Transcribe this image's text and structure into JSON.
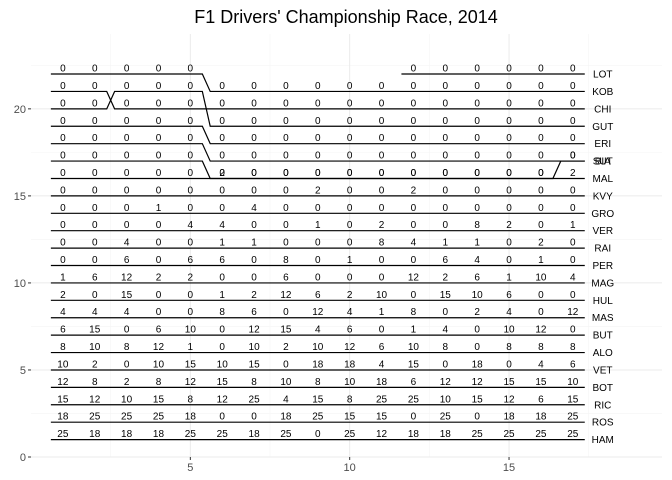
{
  "chart_data": {
    "type": "line",
    "title": "F1 Drivers' Championship Race, 2014",
    "xlabel": "",
    "ylabel": "",
    "xlim": [
      0,
      19.8
    ],
    "ylim": [
      0,
      24.3
    ],
    "x_ticks": [
      5,
      10,
      15
    ],
    "y_ticks": [
      0,
      5,
      10,
      15,
      20
    ],
    "grid": true,
    "x": [
      1,
      2,
      3,
      4,
      5,
      6,
      7,
      8,
      9,
      10,
      11,
      12,
      13,
      14,
      15,
      16,
      17
    ],
    "series": [
      {
        "name": "LOT",
        "ranks": [
          null,
          null,
          null,
          null,
          null,
          null,
          null,
          null,
          null,
          null,
          null,
          22,
          22,
          22,
          22,
          22,
          22
        ],
        "points": [
          "",
          "",
          "",
          "",
          "",
          "",
          "",
          "",
          "",
          "",
          "",
          "0",
          "0",
          "0",
          "0",
          "0",
          "0"
        ]
      },
      {
        "name": "KOB",
        "ranks": [
          22,
          22,
          22,
          22,
          22,
          21,
          21,
          21,
          21,
          21,
          21,
          21,
          21,
          21,
          21,
          21,
          21
        ],
        "points": [
          "0",
          "0",
          "0",
          "0",
          "0",
          "0",
          "0",
          "0",
          "0",
          "0",
          "0",
          "0",
          "0",
          "0",
          "0",
          "0",
          "0"
        ]
      },
      {
        "name": "CHI",
        "ranks": [
          21,
          21,
          20,
          20,
          20,
          20,
          20,
          20,
          20,
          20,
          20,
          20,
          20,
          20,
          20,
          20,
          20
        ],
        "points": [
          "0",
          "0",
          "0",
          "0",
          "0",
          "0",
          "0",
          "0",
          "0",
          "0",
          "0",
          "0",
          "0",
          "0",
          "0",
          "0",
          "0"
        ]
      },
      {
        "name": "GUT",
        "ranks": [
          20,
          20,
          21,
          21,
          21,
          19,
          19,
          19,
          19,
          19,
          19,
          19,
          19,
          19,
          19,
          19,
          19
        ],
        "points": [
          "0",
          "0",
          "0",
          "0",
          "0",
          "0",
          "0",
          "0",
          "0",
          "0",
          "0",
          "0",
          "0",
          "0",
          "0",
          "0",
          "0"
        ]
      },
      {
        "name": "ERI",
        "ranks": [
          19,
          19,
          19,
          19,
          19,
          18,
          18,
          18,
          18,
          18,
          18,
          18,
          18,
          18,
          18,
          18,
          18
        ],
        "points": [
          "0",
          "0",
          "0",
          "0",
          "0",
          "0",
          "0",
          "0",
          "0",
          "0",
          "0",
          "0",
          "0",
          "0",
          "0",
          "0",
          "0"
        ]
      },
      {
        "name": "SUT",
        "ranks": [
          18,
          18,
          18,
          18,
          18,
          17,
          17,
          17,
          17,
          17,
          17,
          17,
          17,
          17,
          17,
          17,
          17
        ],
        "points": [
          "0",
          "0",
          "0",
          "0",
          "0",
          "0",
          "0",
          "0",
          "0",
          "0",
          "0",
          "0",
          "0",
          "0",
          "0",
          "0",
          "0"
        ]
      },
      {
        "name": "BIA",
        "ranks": [
          17,
          17,
          17,
          17,
          17,
          16,
          16,
          16,
          16,
          16,
          16,
          16,
          16,
          16,
          16,
          16,
          17
        ],
        "points": [
          "0",
          "0",
          "0",
          "0",
          "0",
          "2",
          "0",
          "0",
          "0",
          "0",
          "0",
          "0",
          "0",
          "0",
          "0",
          "0",
          "0"
        ]
      },
      {
        "name": "MAL",
        "ranks": [
          16,
          16,
          16,
          16,
          16,
          16,
          16,
          16,
          16,
          16,
          16,
          16,
          16,
          16,
          16,
          16,
          16
        ],
        "points": [
          "0",
          "0",
          "0",
          "0",
          "0",
          "0",
          "0",
          "0",
          "0",
          "0",
          "0",
          "0",
          "0",
          "0",
          "0",
          "0",
          "2"
        ]
      },
      {
        "name": "KVY",
        "ranks": [
          15,
          15,
          15,
          15,
          15,
          15,
          15,
          15,
          15,
          15,
          15,
          15,
          15,
          15,
          15,
          15,
          15
        ],
        "points": [
          "0",
          "0",
          "0",
          "0",
          "0",
          "0",
          "0",
          "0",
          "2",
          "0",
          "0",
          "2",
          "0",
          "0",
          "0",
          "0",
          "0"
        ]
      },
      {
        "name": "GRO",
        "ranks": [
          14,
          14,
          14,
          14,
          14,
          14,
          14,
          14,
          14,
          14,
          14,
          14,
          14,
          14,
          14,
          14,
          14
        ],
        "points": [
          "0",
          "0",
          "0",
          "1",
          "0",
          "0",
          "4",
          "0",
          "0",
          "0",
          "0",
          "0",
          "0",
          "0",
          "0",
          "0",
          "0"
        ]
      },
      {
        "name": "VER",
        "ranks": [
          13,
          13,
          13,
          13,
          13,
          13,
          13,
          13,
          13,
          13,
          13,
          13,
          13,
          13,
          13,
          13,
          13
        ],
        "points": [
          "0",
          "0",
          "0",
          "0",
          "4",
          "4",
          "0",
          "0",
          "1",
          "0",
          "2",
          "0",
          "0",
          "8",
          "2",
          "0",
          "1"
        ]
      },
      {
        "name": "RAI",
        "ranks": [
          12,
          12,
          12,
          12,
          12,
          12,
          12,
          12,
          12,
          12,
          12,
          12,
          12,
          12,
          12,
          12,
          12
        ],
        "points": [
          "0",
          "0",
          "4",
          "0",
          "0",
          "1",
          "1",
          "0",
          "0",
          "0",
          "8",
          "4",
          "1",
          "1",
          "0",
          "2",
          "0"
        ]
      },
      {
        "name": "PER",
        "ranks": [
          11,
          11,
          11,
          11,
          11,
          11,
          11,
          11,
          11,
          11,
          11,
          11,
          11,
          11,
          11,
          11,
          11
        ],
        "points": [
          "0",
          "0",
          "6",
          "0",
          "6",
          "6",
          "0",
          "8",
          "0",
          "1",
          "0",
          "0",
          "6",
          "4",
          "0",
          "1",
          "0"
        ]
      },
      {
        "name": "MAG",
        "ranks": [
          10,
          10,
          10,
          10,
          10,
          10,
          10,
          10,
          10,
          10,
          10,
          10,
          10,
          10,
          10,
          10,
          10
        ],
        "points": [
          "1",
          "6",
          "12",
          "2",
          "2",
          "0",
          "0",
          "6",
          "0",
          "0",
          "0",
          "12",
          "2",
          "6",
          "1",
          "10",
          "4"
        ]
      },
      {
        "name": "HUL",
        "ranks": [
          9,
          9,
          9,
          9,
          9,
          9,
          9,
          9,
          9,
          9,
          9,
          9,
          9,
          9,
          9,
          9,
          9
        ],
        "points": [
          "2",
          "0",
          "15",
          "0",
          "0",
          "1",
          "2",
          "12",
          "6",
          "2",
          "10",
          "0",
          "15",
          "10",
          "6",
          "0",
          "0"
        ]
      },
      {
        "name": "MAS",
        "ranks": [
          8,
          8,
          8,
          8,
          8,
          8,
          8,
          8,
          8,
          8,
          8,
          8,
          8,
          8,
          8,
          8,
          8
        ],
        "points": [
          "4",
          "4",
          "4",
          "0",
          "0",
          "8",
          "6",
          "0",
          "12",
          "4",
          "1",
          "8",
          "0",
          "2",
          "4",
          "0",
          "12"
        ]
      },
      {
        "name": "BUT",
        "ranks": [
          7,
          7,
          7,
          7,
          7,
          7,
          7,
          7,
          7,
          7,
          7,
          7,
          7,
          7,
          7,
          7,
          7
        ],
        "points": [
          "6",
          "15",
          "0",
          "6",
          "10",
          "0",
          "12",
          "15",
          "4",
          "6",
          "0",
          "1",
          "4",
          "0",
          "10",
          "12",
          "0"
        ]
      },
      {
        "name": "ALO",
        "ranks": [
          6,
          6,
          6,
          6,
          6,
          6,
          6,
          6,
          6,
          6,
          6,
          6,
          6,
          6,
          6,
          6,
          6
        ],
        "points": [
          "8",
          "10",
          "8",
          "12",
          "1",
          "0",
          "10",
          "2",
          "10",
          "12",
          "6",
          "10",
          "8",
          "0",
          "8",
          "8",
          "8"
        ]
      },
      {
        "name": "VET",
        "ranks": [
          5,
          5,
          5,
          5,
          5,
          5,
          5,
          5,
          5,
          5,
          5,
          5,
          5,
          5,
          5,
          5,
          5
        ],
        "points": [
          "10",
          "2",
          "0",
          "10",
          "15",
          "10",
          "15",
          "0",
          "18",
          "18",
          "4",
          "15",
          "0",
          "18",
          "0",
          "4",
          "6"
        ]
      },
      {
        "name": "BOT",
        "ranks": [
          4,
          4,
          4,
          4,
          4,
          4,
          4,
          4,
          4,
          4,
          4,
          4,
          4,
          4,
          4,
          4,
          4
        ],
        "points": [
          "12",
          "8",
          "2",
          "8",
          "12",
          "15",
          "8",
          "10",
          "8",
          "10",
          "18",
          "6",
          "12",
          "12",
          "15",
          "15",
          "10"
        ]
      },
      {
        "name": "RIC",
        "ranks": [
          3,
          3,
          3,
          3,
          3,
          3,
          3,
          3,
          3,
          3,
          3,
          3,
          3,
          3,
          3,
          3,
          3
        ],
        "points": [
          "15",
          "12",
          "10",
          "15",
          "8",
          "12",
          "25",
          "4",
          "15",
          "8",
          "25",
          "25",
          "10",
          "15",
          "12",
          "6",
          "15"
        ]
      },
      {
        "name": "ROS",
        "ranks": [
          2,
          2,
          2,
          2,
          2,
          2,
          2,
          2,
          2,
          2,
          2,
          2,
          2,
          2,
          2,
          2,
          2
        ],
        "points": [
          "18",
          "25",
          "25",
          "25",
          "18",
          "0",
          "0",
          "18",
          "25",
          "15",
          "15",
          "0",
          "25",
          "0",
          "18",
          "18",
          "25"
        ]
      },
      {
        "name": "HAM",
        "ranks": [
          1,
          1,
          1,
          1,
          1,
          1,
          1,
          1,
          1,
          1,
          1,
          1,
          1,
          1,
          1,
          1,
          1
        ],
        "points": [
          "25",
          "18",
          "18",
          "18",
          "25",
          "25",
          "18",
          "25",
          "0",
          "25",
          "12",
          "18",
          "18",
          "25",
          "25",
          "25",
          "25"
        ]
      }
    ]
  }
}
